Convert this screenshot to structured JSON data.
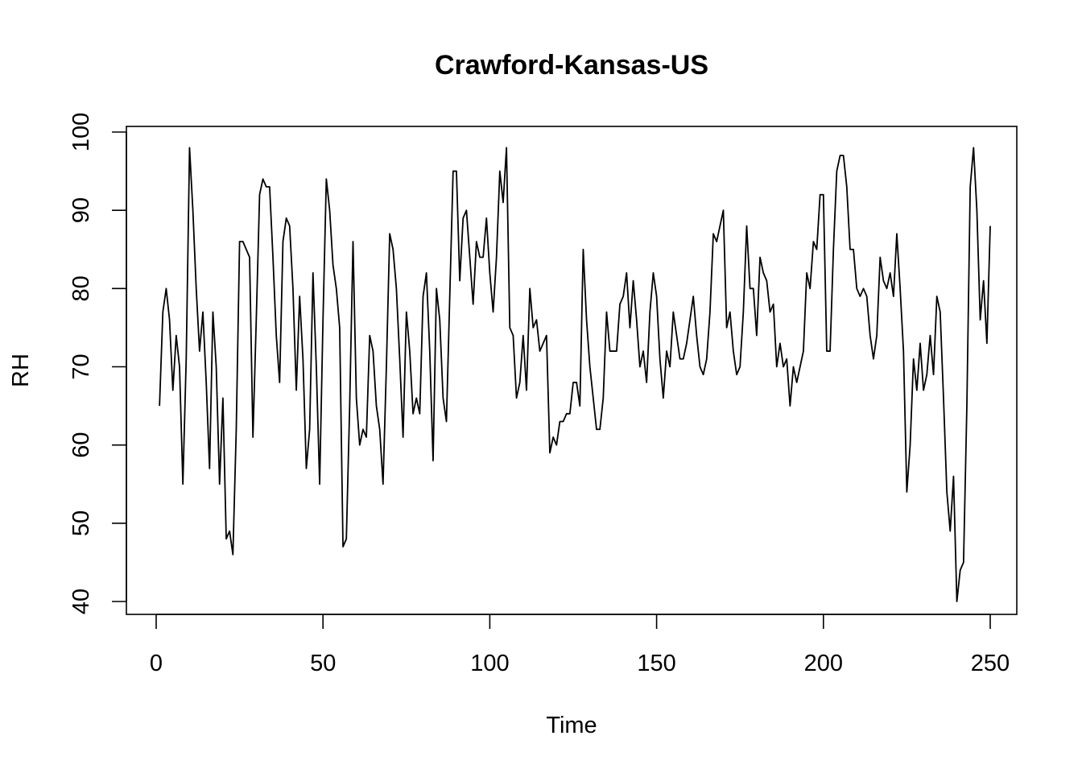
{
  "chart_data": {
    "type": "line",
    "title": "Crawford-Kansas-US",
    "xlabel": "Time",
    "ylabel": "RH",
    "xlim": [
      0,
      250
    ],
    "ylim": [
      40,
      100
    ],
    "x_ticks": [
      0,
      50,
      100,
      150,
      200,
      250
    ],
    "y_ticks": [
      40,
      50,
      60,
      70,
      80,
      90,
      100
    ],
    "grid": false,
    "line_color": "#000000",
    "series": [
      {
        "values": [
          65,
          77,
          80,
          76,
          67,
          74,
          70,
          55,
          71,
          98,
          90,
          80,
          72,
          77,
          68,
          57,
          77,
          70,
          55,
          66,
          48,
          49,
          46,
          62,
          86,
          86,
          85,
          84,
          61,
          76,
          92,
          94,
          93,
          93,
          84,
          74,
          68,
          86,
          89,
          88,
          80,
          67,
          79,
          71,
          57,
          62,
          82,
          70,
          55,
          76,
          94,
          90,
          83,
          80,
          75,
          47,
          48,
          65,
          86,
          66,
          60,
          62,
          61,
          74,
          72,
          65,
          62,
          55,
          70,
          87,
          85,
          80,
          71,
          61,
          77,
          72,
          64,
          66,
          64,
          79,
          82,
          72,
          58,
          80,
          76,
          66,
          63,
          79,
          95,
          95,
          81,
          89,
          90,
          84,
          78,
          86,
          84,
          84,
          89,
          82,
          77,
          84,
          95,
          91,
          98,
          75,
          74,
          66,
          68,
          74,
          67,
          80,
          75,
          76,
          72,
          73,
          74,
          59,
          61,
          60,
          63,
          63,
          64,
          64,
          68,
          68,
          65,
          85,
          76,
          70,
          66,
          62,
          62,
          66,
          77,
          72,
          72,
          72,
          78,
          79,
          82,
          75,
          81,
          76,
          70,
          72,
          68,
          77,
          82,
          79,
          71,
          66,
          72,
          70,
          77,
          74,
          71,
          71,
          73,
          76,
          79,
          74,
          70,
          69,
          71,
          77,
          87,
          86,
          88,
          90,
          75,
          77,
          72,
          69,
          70,
          77,
          88,
          80,
          80,
          74,
          84,
          82,
          81,
          77,
          78,
          70,
          73,
          70,
          71,
          65,
          70,
          68,
          70,
          72,
          82,
          80,
          86,
          85,
          92,
          92,
          72,
          72,
          85,
          95,
          97,
          97,
          93,
          85,
          85,
          80,
          79,
          80,
          79,
          74,
          71,
          74,
          84,
          81,
          80,
          82,
          79,
          87,
          80,
          72,
          54,
          60,
          71,
          67,
          73,
          67,
          69,
          74,
          69,
          79,
          77,
          66,
          54,
          49,
          56,
          40,
          44,
          45,
          65,
          93,
          98,
          90,
          76,
          81,
          73,
          88
        ]
      }
    ]
  }
}
